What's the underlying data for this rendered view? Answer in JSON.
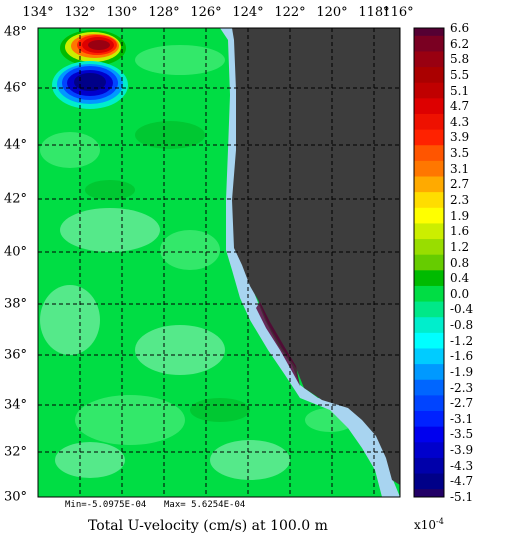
{
  "title": "Total U-velocity (cm/s) at 100.0 m",
  "min_text": "Min=-5.0975E-04",
  "max_text": "Max= 5.6254E-04",
  "scale_base": "x10",
  "scale_exp": "-4",
  "lon_labels": [
    "134°",
    "132°",
    "130°",
    "128°",
    "126°",
    "124°",
    "122°",
    "120°",
    "118°",
    "116°"
  ],
  "lat_labels": [
    "48°",
    "46°",
    "44°",
    "42°",
    "40°",
    "38°",
    "36°",
    "34°",
    "32°",
    "30°"
  ],
  "colors": {
    "land": "#3d3d3d",
    "coast_shelf": "#a8d4f0",
    "ocean_base": "#00dd44",
    "ocean_light": "#33e86a",
    "ocean_pale": "#55e98a",
    "ocean_dark": "#00c832",
    "grid": "#000000"
  },
  "legend": [
    {
      "label": "6.6",
      "color": "#550033"
    },
    {
      "label": "6.2",
      "color": "#7a0022"
    },
    {
      "label": "5.8",
      "color": "#990011"
    },
    {
      "label": "5.5",
      "color": "#aa0000"
    },
    {
      "label": "5.1",
      "color": "#c00000"
    },
    {
      "label": "4.7",
      "color": "#dd0000"
    },
    {
      "label": "4.3",
      "color": "#ee1100"
    },
    {
      "label": "3.9",
      "color": "#ff2200"
    },
    {
      "label": "3.5",
      "color": "#ff5500"
    },
    {
      "label": "3.1",
      "color": "#ff7700"
    },
    {
      "label": "2.7",
      "color": "#ffaa00"
    },
    {
      "label": "2.3",
      "color": "#ffdd00"
    },
    {
      "label": "1.9",
      "color": "#ffff00"
    },
    {
      "label": "1.6",
      "color": "#ccee00"
    },
    {
      "label": "1.2",
      "color": "#99dd00"
    },
    {
      "label": "0.8",
      "color": "#66cc00"
    },
    {
      "label": "0.4",
      "color": "#00bb00"
    },
    {
      "label": "0.0",
      "color": "#00dd44"
    },
    {
      "label": "-0.4",
      "color": "#00e888"
    },
    {
      "label": "-0.8",
      "color": "#00eecc"
    },
    {
      "label": "-1.2",
      "color": "#00ffff"
    },
    {
      "label": "-1.6",
      "color": "#00ccff"
    },
    {
      "label": "-1.9",
      "color": "#0099ff"
    },
    {
      "label": "-2.3",
      "color": "#0066ff"
    },
    {
      "label": "-2.7",
      "color": "#0044ff"
    },
    {
      "label": "-3.1",
      "color": "#0022ff"
    },
    {
      "label": "-3.5",
      "color": "#0000ee"
    },
    {
      "label": "-3.9",
      "color": "#0000cc"
    },
    {
      "label": "-4.3",
      "color": "#0000aa"
    },
    {
      "label": "-4.7",
      "color": "#000088"
    },
    {
      "label": "-5.1",
      "color": "#220066"
    }
  ]
}
